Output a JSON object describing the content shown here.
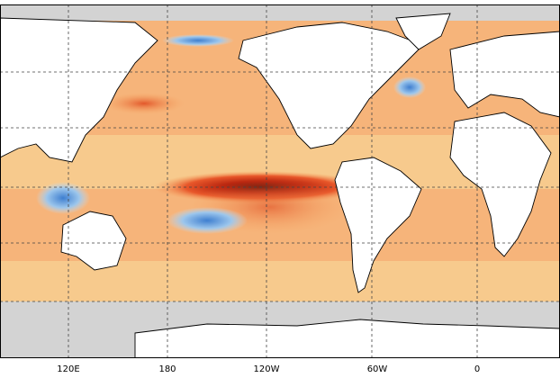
{
  "map": {
    "lon_labels": [
      "120E",
      "180",
      "120W",
      "60W",
      "0"
    ]
  }
}
